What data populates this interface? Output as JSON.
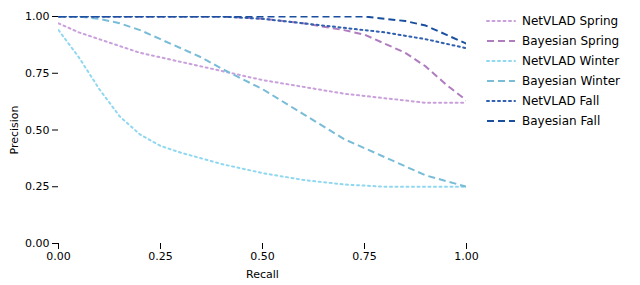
{
  "chart_data": {
    "type": "line",
    "xlabel": "Recall",
    "ylabel": "Precision",
    "xlim": [
      0.0,
      1.0
    ],
    "ylim": [
      0.0,
      1.0
    ],
    "xticks": [
      {
        "value": 0.0,
        "label": "0.00"
      },
      0.25,
      {
        "value": 0.5,
        "label": "0.50"
      },
      0.75,
      {
        "value": 1.0,
        "label": "1.00"
      }
    ],
    "yticks": [
      {
        "value": 0.0,
        "label": "0.00"
      },
      0.25,
      {
        "value": 0.5,
        "label": "0.50"
      },
      0.75,
      {
        "value": 1.0,
        "label": "1.00"
      }
    ],
    "grid": false,
    "legend": "right",
    "series": [
      {
        "name": "NetVLAD Spring",
        "color": "#c9a0dc",
        "line_style": "dotted",
        "x": [
          0.0,
          0.05,
          0.1,
          0.15,
          0.2,
          0.3,
          0.4,
          0.5,
          0.6,
          0.7,
          0.8,
          0.9,
          1.0
        ],
        "values": [
          0.97,
          0.93,
          0.9,
          0.87,
          0.84,
          0.8,
          0.76,
          0.72,
          0.69,
          0.66,
          0.64,
          0.62,
          0.62
        ]
      },
      {
        "name": "Bayesian Spring",
        "color": "#b07cc0",
        "line_style": "dashed",
        "x": [
          0.0,
          0.1,
          0.2,
          0.3,
          0.4,
          0.5,
          0.6,
          0.7,
          0.75,
          0.8,
          0.85,
          0.9,
          0.95,
          1.0
        ],
        "values": [
          1.0,
          1.0,
          1.0,
          1.0,
          1.0,
          0.99,
          0.97,
          0.94,
          0.92,
          0.88,
          0.84,
          0.78,
          0.7,
          0.63
        ]
      },
      {
        "name": "NetVLAD Winter",
        "color": "#90d8f0",
        "line_style": "dotted",
        "x": [
          0.0,
          0.05,
          0.1,
          0.15,
          0.2,
          0.25,
          0.3,
          0.4,
          0.5,
          0.6,
          0.7,
          0.8,
          0.9,
          1.0
        ],
        "values": [
          0.94,
          0.82,
          0.68,
          0.56,
          0.48,
          0.43,
          0.4,
          0.35,
          0.31,
          0.28,
          0.26,
          0.25,
          0.25,
          0.25
        ]
      },
      {
        "name": "Bayesian Winter",
        "color": "#78bcd8",
        "line_style": "dashed",
        "x": [
          0.0,
          0.05,
          0.1,
          0.15,
          0.2,
          0.25,
          0.3,
          0.35,
          0.4,
          0.5,
          0.6,
          0.7,
          0.8,
          0.9,
          1.0
        ],
        "values": [
          1.0,
          1.0,
          0.99,
          0.97,
          0.94,
          0.9,
          0.86,
          0.82,
          0.77,
          0.68,
          0.57,
          0.46,
          0.38,
          0.3,
          0.25
        ]
      },
      {
        "name": "NetVLAD Fall",
        "color": "#3060b0",
        "line_style": "dotted",
        "x": [
          0.0,
          0.1,
          0.2,
          0.3,
          0.4,
          0.5,
          0.55,
          0.6,
          0.7,
          0.8,
          0.9,
          1.0
        ],
        "values": [
          1.0,
          1.0,
          1.0,
          1.0,
          1.0,
          0.99,
          0.98,
          0.97,
          0.95,
          0.93,
          0.9,
          0.86
        ]
      },
      {
        "name": "Bayesian Fall",
        "color": "#1a4fa0",
        "line_style": "dashed",
        "x": [
          0.0,
          0.1,
          0.2,
          0.3,
          0.4,
          0.5,
          0.6,
          0.7,
          0.75,
          0.8,
          0.85,
          0.9,
          0.95,
          1.0
        ],
        "values": [
          1.0,
          1.0,
          1.0,
          1.0,
          1.0,
          1.0,
          1.0,
          1.0,
          1.0,
          0.99,
          0.98,
          0.96,
          0.92,
          0.88
        ]
      }
    ]
  }
}
